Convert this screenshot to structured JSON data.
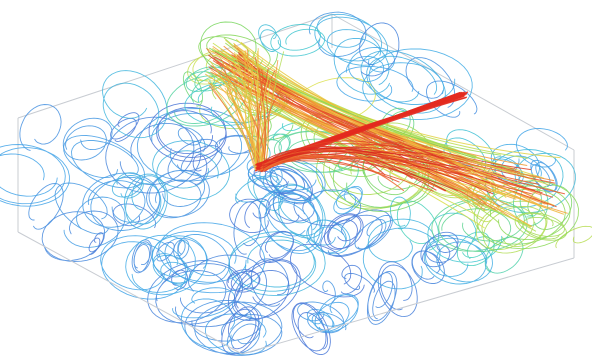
{
  "visualization": {
    "kind": "3d-streamline-flow-render",
    "background_color": "#ffffff",
    "box_edge_color": "#c8ccd2",
    "colormap": [
      "#3b4cc0",
      "#4a73d6",
      "#41a7e8",
      "#3fcfc8",
      "#7ad65a",
      "#d9e04a",
      "#f3b23a",
      "#ea5a2c",
      "#d7261e"
    ],
    "slow_flow_color": "#4466cc",
    "fast_flow_color": "#e32a1f"
  }
}
